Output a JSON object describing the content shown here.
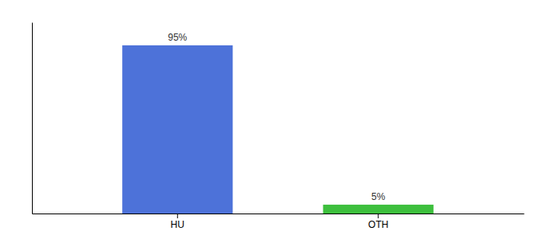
{
  "chart_data": {
    "type": "bar",
    "categories": [
      "HU",
      "OTH"
    ],
    "values": [
      95,
      5
    ],
    "value_labels": [
      "95%",
      "5%"
    ],
    "data_labels": true,
    "colors": [
      "#4d72d9",
      "#3dbf3d"
    ],
    "ylim": [
      0,
      108
    ],
    "tick_labels": "x"
  }
}
